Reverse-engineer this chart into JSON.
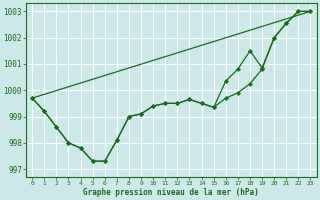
{
  "title": "Graphe pression niveau de la mer (hPa)",
  "bg_color": "#cce8e8",
  "grid_color": "#ffffff",
  "line_color": "#1a6b1a",
  "xlim": [
    -0.5,
    23.5
  ],
  "ylim": [
    996.7,
    1003.3
  ],
  "yticks": [
    997,
    998,
    999,
    1000,
    1001,
    1002,
    1003
  ],
  "xticks": [
    0,
    1,
    2,
    3,
    4,
    5,
    6,
    7,
    8,
    9,
    10,
    11,
    12,
    13,
    14,
    15,
    16,
    17,
    18,
    19,
    20,
    21,
    22,
    23
  ],
  "series1_x": [
    0,
    1,
    2,
    3,
    4,
    5,
    6,
    7,
    8,
    9,
    10,
    11,
    12,
    13,
    14,
    15,
    16,
    17,
    18,
    19,
    20,
    21,
    22,
    23
  ],
  "series1_y": [
    999.7,
    999.2,
    998.6,
    998.0,
    997.8,
    997.3,
    997.3,
    998.1,
    999.0,
    999.1,
    999.4,
    999.5,
    999.5,
    999.65,
    999.5,
    999.35,
    999.7,
    999.9,
    1000.25,
    1000.8,
    1002.0,
    1002.55,
    1003.0,
    1003.0
  ],
  "series2_x": [
    0,
    1,
    2,
    3,
    4,
    5,
    6,
    7,
    8,
    9,
    10,
    11,
    12,
    13,
    14,
    15,
    16,
    17,
    18,
    19,
    20,
    21,
    22,
    23
  ],
  "series2_y": [
    999.7,
    999.2,
    998.6,
    998.0,
    997.8,
    997.3,
    997.3,
    998.1,
    999.0,
    999.1,
    999.4,
    999.5,
    999.5,
    999.65,
    999.5,
    999.35,
    1000.35,
    1000.8,
    1001.5,
    1000.85,
    1002.0,
    1002.55,
    1003.0,
    1003.0
  ],
  "series3_x": [
    0,
    23
  ],
  "series3_y": [
    999.7,
    1003.0
  ]
}
